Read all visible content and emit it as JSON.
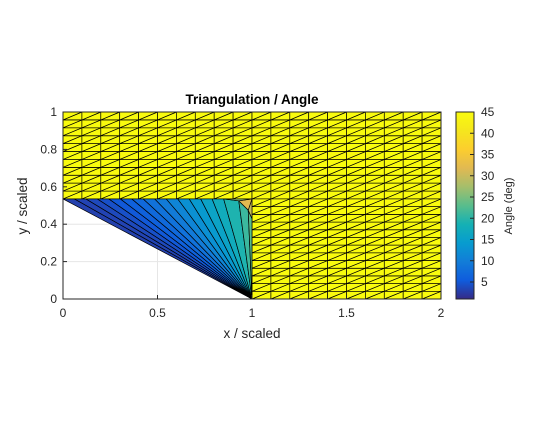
{
  "chart_data": {
    "type": "trisurf",
    "title": "Triangulation / Angle",
    "xlabel": "x / scaled",
    "ylabel": "y / scaled",
    "xlim": [
      0,
      2
    ],
    "ylim": [
      0,
      1
    ],
    "x_ticks": [
      "0",
      "0.5",
      "1",
      "1.5",
      "2"
    ],
    "y_ticks": [
      "0",
      "0.2",
      "0.4",
      "0.6",
      "0.8",
      "1"
    ],
    "grid": true,
    "mesh": {
      "uniform_cells_x": 20,
      "uniform_cells_y": 11,
      "region_uniform_value": 45,
      "fan_region": {
        "apex": [
          1,
          0
        ],
        "top_edge_y": 0.535,
        "top_edge_x": [
          0,
          0.85
        ],
        "corner_point": [
          1,
          0.43
        ],
        "rays": 16,
        "angle_range": [
          3,
          23
        ]
      }
    },
    "colorbar": {
      "label": "Angle (deg)",
      "ticks": [
        "5",
        "10",
        "15",
        "20",
        "25",
        "30",
        "35",
        "40",
        "45"
      ],
      "range": [
        1,
        45
      ],
      "colormap": "parula",
      "location": "right"
    }
  }
}
